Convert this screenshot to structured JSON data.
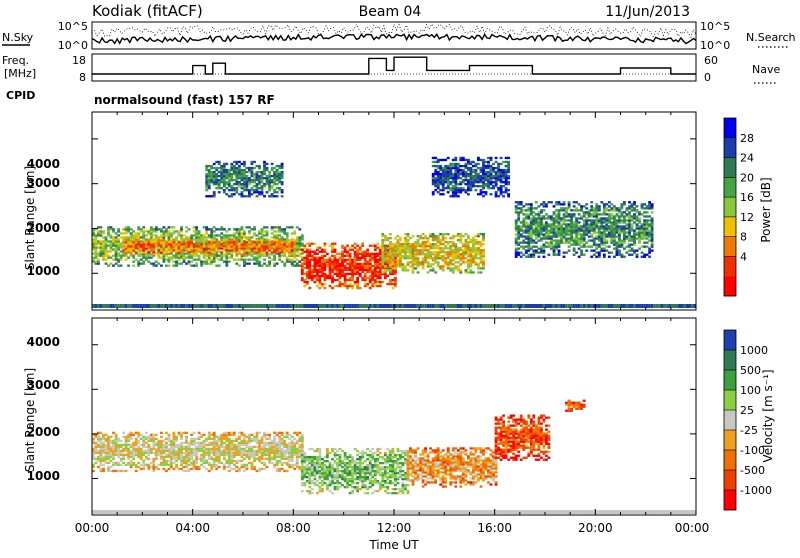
{
  "header": {
    "station": "Kodiak (fitACF)",
    "beam": "Beam 04",
    "date": "11/Jun/2013"
  },
  "top_panels": {
    "nsky_label": "N.Sky",
    "nsky_ticks": [
      "10^5",
      "10^0"
    ],
    "nsearch_label": "N.Search",
    "nsearch_ticks": [
      "10^5",
      "10^0"
    ],
    "freq_label_line1": "Freq.",
    "freq_label_line2": "[MHz]",
    "freq_ticks": [
      "18",
      "8"
    ],
    "nave_label": "Nave",
    "nave_ticks": [
      "60",
      "0"
    ],
    "cpid_label": "CPID",
    "cpid_text": "normalsound (fast) 157 RF"
  },
  "axes": {
    "ylabel": "Slant Range [km]",
    "y_ticks": [
      "4000",
      "3000",
      "2000",
      "1000"
    ],
    "x_ticks": [
      "00:00",
      "04:00",
      "08:00",
      "12:00",
      "16:00",
      "20:00",
      "00:00"
    ],
    "xlabel": "Time UT"
  },
  "power_scale": {
    "title": "Power [dB]",
    "labels": [
      "28",
      "24",
      "20",
      "16",
      "12",
      "8",
      "4"
    ],
    "colors": [
      "#0000ee",
      "#1c3caa",
      "#2f7a55",
      "#45a545",
      "#88c83a",
      "#f0c000",
      "#f07a00",
      "#f03000",
      "#ff0000"
    ]
  },
  "velocity_scale": {
    "title": "Velocity [m s⁻¹]",
    "labels": [
      "1000",
      "500",
      "100",
      "25",
      "-25",
      "-100",
      "-500",
      "-1000"
    ],
    "colors": [
      "#1f3fb0",
      "#2f7a55",
      "#3ca03c",
      "#8ad040",
      "#c8c8c0",
      "#f0a020",
      "#f07000",
      "#f04000",
      "#ff0000"
    ]
  },
  "chart_data": {
    "type": "heatmap",
    "title": "Kodiak (fitACF) Beam 04 11/Jun/2013",
    "xlabel": "Time UT",
    "ylabel": "Slant Range [km]",
    "xlim": [
      0,
      24
    ],
    "ylim": [
      180,
      4600
    ],
    "panels": [
      {
        "name": "Power [dB]",
        "clim": [
          0,
          30
        ],
        "regions": [
          {
            "t": [
              0,
              8.3
            ],
            "r": [
              1150,
              2050
            ],
            "level": 14
          },
          {
            "t": [
              1.2,
              8.0
            ],
            "r": [
              1400,
              1750
            ],
            "level": 22
          },
          {
            "t": [
              8.3,
              12.0
            ],
            "r": [
              650,
              1650
            ],
            "level": 26
          },
          {
            "t": [
              11.5,
              15.5
            ],
            "r": [
              1000,
              1900
            ],
            "level": 18
          },
          {
            "t": [
              16.8,
              22.3
            ],
            "r": [
              1350,
              2600
            ],
            "level": 10
          },
          {
            "t": [
              4.5,
              7.5
            ],
            "r": [
              2700,
              3500
            ],
            "level": 9
          },
          {
            "t": [
              13.5,
              16.5
            ],
            "r": [
              2700,
              3600
            ],
            "level": 6
          }
        ]
      },
      {
        "name": "Velocity [m s⁻¹]",
        "clim": [
          -1000,
          1000
        ],
        "regions": [
          {
            "t": [
              0,
              8.3
            ],
            "r": [
              1150,
              2050
            ],
            "level": 0
          },
          {
            "t": [
              8.3,
              12.5
            ],
            "r": [
              650,
              1650
            ],
            "level": 300
          },
          {
            "t": [
              12.5,
              16.0
            ],
            "r": [
              800,
              1700
            ],
            "level": -300
          },
          {
            "t": [
              16.0,
              18.2
            ],
            "r": [
              1400,
              2400
            ],
            "level": -600
          },
          {
            "t": [
              18.8,
              19.6
            ],
            "r": [
              2500,
              2750
            ],
            "level": -600
          }
        ]
      }
    ],
    "nsky": {
      "ylim": [
        0,
        5
      ],
      "scale": "log"
    },
    "freq": {
      "ylim": [
        8,
        18
      ],
      "segments": [
        {
          "t": [
            0,
            4.0
          ],
          "v": 10.5
        },
        {
          "t": [
            4.0,
            4.5
          ],
          "v": 14
        },
        {
          "t": [
            4.5,
            4.8
          ],
          "v": 10.5
        },
        {
          "t": [
            4.8,
            5.3
          ],
          "v": 15
        },
        {
          "t": [
            5.3,
            11.0
          ],
          "v": 10.5
        },
        {
          "t": [
            11.0,
            11.7
          ],
          "v": 17
        },
        {
          "t": [
            11.7,
            12.0
          ],
          "v": 12
        },
        {
          "t": [
            12.0,
            13.3
          ],
          "v": 17.5
        },
        {
          "t": [
            13.3,
            15.0
          ],
          "v": 12
        },
        {
          "t": [
            15.0,
            17.5
          ],
          "v": 14
        },
        {
          "t": [
            17.5,
            21.0
          ],
          "v": 10.5
        },
        {
          "t": [
            21.0,
            23.0
          ],
          "v": 13
        },
        {
          "t": [
            23.0,
            24.0
          ],
          "v": 10.5
        }
      ]
    }
  }
}
